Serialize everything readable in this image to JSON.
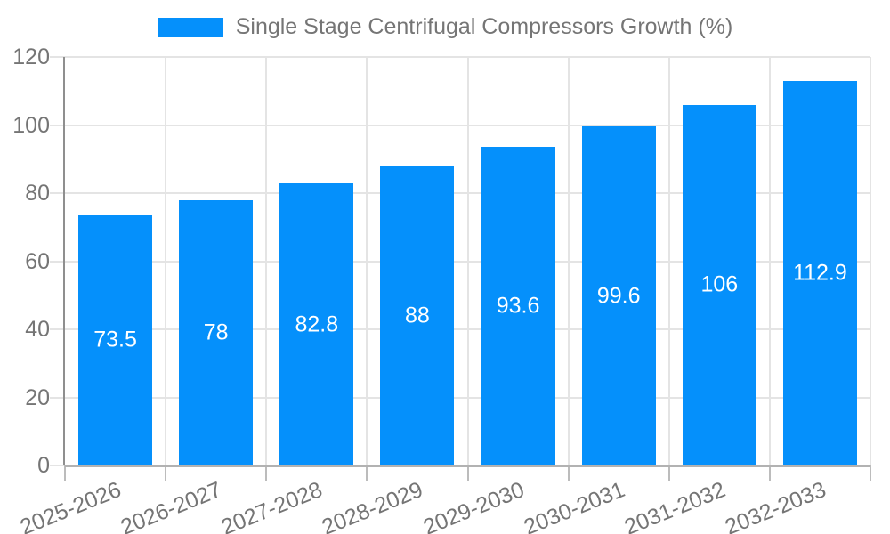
{
  "chart_data": {
    "type": "bar",
    "title": "Single Stage Centrifugal Compressors Growth (%)",
    "categories": [
      "2025-2026",
      "2026-2027",
      "2027-2028",
      "2028-2029",
      "2029-2030",
      "2030-2031",
      "2031-2032",
      "2032-2033"
    ],
    "series": [
      {
        "name": "Single Stage Centrifugal Compressors Growth (%)",
        "values": [
          73.5,
          78,
          82.8,
          88,
          93.6,
          99.6,
          106,
          112.9
        ],
        "value_labels": [
          "73.5",
          "78",
          "82.8",
          "88",
          "93.6",
          "99.6",
          "106",
          "112.9"
        ]
      }
    ],
    "xlabel": "",
    "ylabel": "",
    "ylim": [
      0,
      120
    ],
    "yticks": [
      0,
      20,
      40,
      60,
      80,
      100,
      120
    ],
    "grid": true,
    "legend_position": "top-center"
  },
  "colors": {
    "bar": "#0590fb",
    "bar_value_text": "#ffffff",
    "axis_text": "#757575",
    "legend_text": "#757575",
    "gridline": "#e4e4e4",
    "y_axis_line": "#8f8f8f",
    "x_axis_line": "#b2b2b2",
    "tick_mark": "#bcbcbc",
    "background": "#ffffff"
  }
}
